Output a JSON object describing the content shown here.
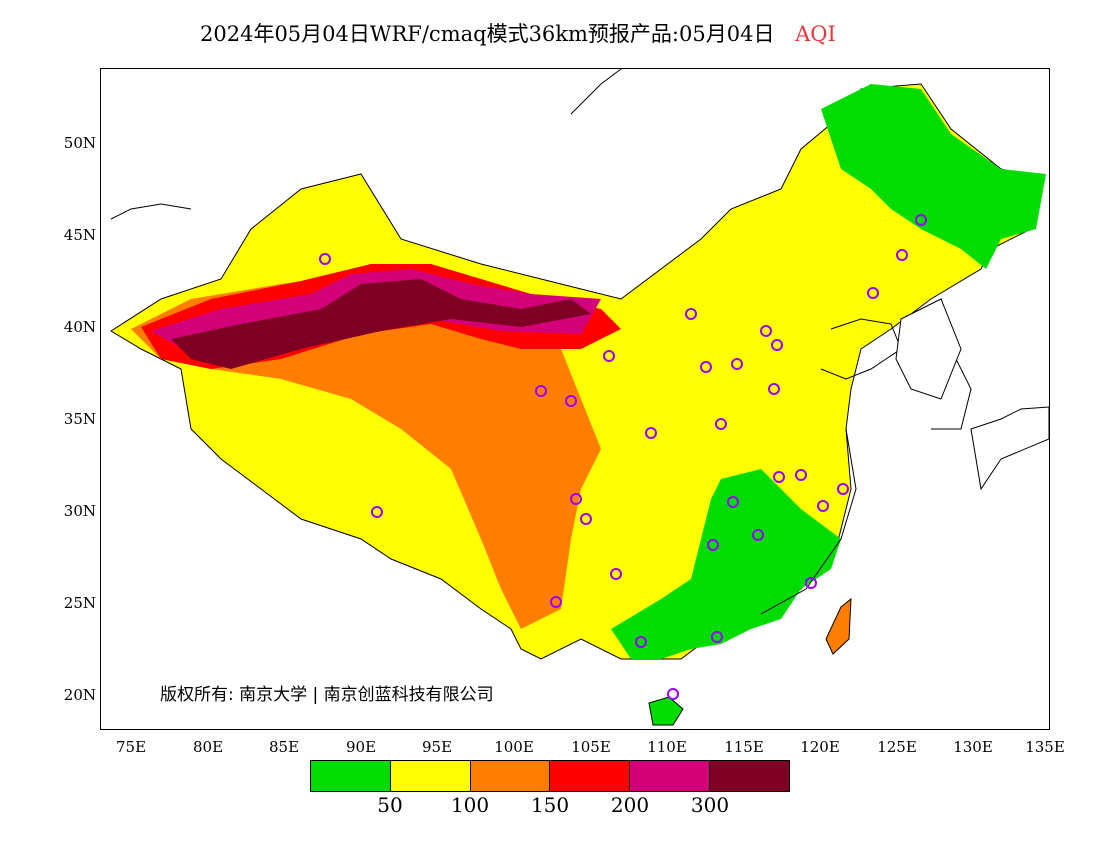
{
  "title": {
    "main": "2024年05月04日WRF/cmaq模式36km预报产品:05月04日",
    "variable": "AQI"
  },
  "lat_labels": [
    "50N",
    "45N",
    "40N",
    "35N",
    "30N",
    "25N",
    "20N"
  ],
  "lon_labels": [
    "75E",
    "80E",
    "85E",
    "90E",
    "95E",
    "100E",
    "105E",
    "110E",
    "115E",
    "120E",
    "125E",
    "130E",
    "135E"
  ],
  "copyright": "版权所有: 南京大学 | 南京创蓝科技有限公司",
  "legend": {
    "colors": [
      "#00dc00",
      "#ffff00",
      "#ff7e00",
      "#ff0000",
      "#d4007a",
      "#7e0023"
    ],
    "labels": [
      "50",
      "100",
      "150",
      "200",
      "300"
    ]
  }
}
